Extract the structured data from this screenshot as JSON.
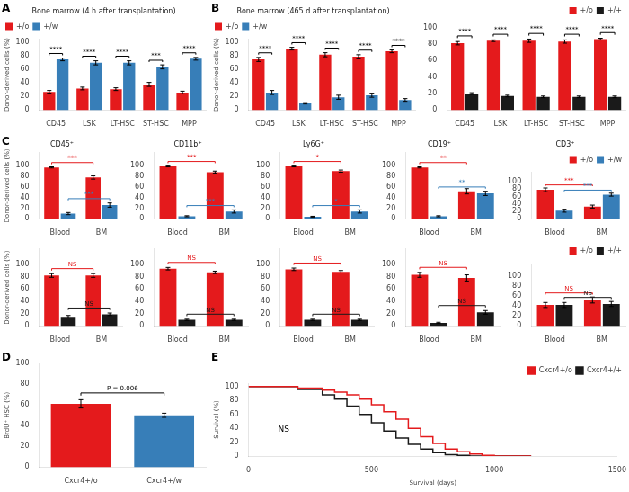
{
  "chart_data": [
    {
      "panel": "A",
      "type": "bar",
      "title": "Bone marrow (4 h after transplantation)",
      "ylabel": "Donor-derived cells (%)",
      "categories": [
        "CD45",
        "LSK",
        "LT-HSC",
        "ST-HSC",
        "MPP"
      ],
      "series": [
        {
          "name": "+/o",
          "color": "#e41a1c",
          "values": [
            27,
            32,
            31,
            38,
            26
          ],
          "errors": [
            2,
            2,
            2,
            3,
            2
          ]
        },
        {
          "name": "+/w",
          "color": "#377eb8",
          "values": [
            75,
            70,
            70,
            64,
            76
          ],
          "errors": [
            2,
            3,
            3,
            3,
            2
          ]
        }
      ],
      "ylim": [
        0,
        105
      ],
      "yticks": [
        0,
        20,
        40,
        60,
        80,
        100
      ],
      "grid": false,
      "legend": "upper left",
      "annotations": [
        {
          "text": "****",
          "category": "CD45"
        },
        {
          "text": "****",
          "category": "LSK"
        },
        {
          "text": "****",
          "category": "LT-HSC"
        },
        {
          "text": "***",
          "category": "ST-HSC"
        },
        {
          "text": "****",
          "category": "MPP"
        }
      ]
    },
    {
      "panel": "B",
      "type": "bar",
      "title": "Bone marrow (465 d after transplantation)",
      "ylabel": "Donor-derived cells (%)",
      "categories": [
        "CD45",
        "LSK",
        "LT-HSC",
        "ST-HSC",
        "MPP"
      ],
      "series": [
        {
          "name": "+/o",
          "color": "#e41a1c",
          "values": [
            75,
            91,
            82,
            79,
            87
          ],
          "errors": [
            3,
            2,
            3,
            3,
            2
          ]
        },
        {
          "name": "+/w",
          "color": "#377eb8",
          "values": [
            26,
            10,
            19,
            22,
            15
          ],
          "errors": [
            3,
            1,
            3,
            3,
            2
          ]
        }
      ],
      "ylim": [
        0,
        105
      ],
      "yticks": [
        0,
        20,
        40,
        60,
        80,
        100
      ],
      "grid": false,
      "legend": "upper left",
      "annotations": [
        {
          "text": "****",
          "category": "CD45"
        },
        {
          "text": "****",
          "category": "LSK"
        },
        {
          "text": "****",
          "category": "LT-HSC"
        },
        {
          "text": "****",
          "category": "ST-HSC"
        },
        {
          "text": "****",
          "category": "MPP"
        }
      ]
    },
    {
      "type": "bar",
      "categories": [
        "CD45",
        "LSK",
        "LT-HSC",
        "ST-HSC",
        "MPP"
      ],
      "series": [
        {
          "name": "+/o",
          "color": "#e41a1c",
          "values": [
            81,
            84,
            84,
            83,
            86
          ],
          "errors": [
            2,
            1,
            2,
            2,
            1
          ]
        },
        {
          "name": "+/+",
          "color": "#1a1a1a",
          "values": [
            20,
            17,
            16,
            16,
            16
          ],
          "errors": [
            1,
            1,
            1,
            1,
            1
          ]
        }
      ],
      "ylim": [
        0,
        105
      ],
      "yticks": [
        0,
        20,
        40,
        60,
        80,
        100
      ],
      "grid": false,
      "legend": "upper right",
      "annotations": [
        {
          "text": "****",
          "category": "CD45"
        },
        {
          "text": "****",
          "category": "LSK"
        },
        {
          "text": "****",
          "category": "LT-HSC"
        },
        {
          "text": "****",
          "category": "ST-HSC"
        },
        {
          "text": "****",
          "category": "MPP"
        }
      ]
    },
    {
      "panel": "C",
      "type": "bar",
      "title": "CD45⁺",
      "ylabel": "Donor-derived cells (%)",
      "categories": [
        "Blood",
        "BM"
      ],
      "series": [
        {
          "color": "#e41a1c",
          "values": [
            97,
            78
          ],
          "errors": [
            1,
            3
          ]
        },
        {
          "color": "#377eb8",
          "values": [
            10,
            26
          ],
          "errors": [
            2,
            4
          ]
        }
      ],
      "ylim": [
        0,
        125
      ],
      "yticks": [
        0,
        20,
        40,
        60,
        80,
        100
      ],
      "grid": false,
      "annotations": [
        {
          "text": "***",
          "series": 0
        },
        {
          "text": "***",
          "series": 1
        }
      ]
    },
    {
      "type": "bar",
      "title": "CD11b⁺",
      "categories": [
        "Blood",
        "BM"
      ],
      "series": [
        {
          "color": "#e41a1c",
          "values": [
            99,
            88
          ],
          "errors": [
            1,
            2
          ]
        },
        {
          "color": "#377eb8",
          "values": [
            5,
            14
          ],
          "errors": [
            1,
            3
          ]
        }
      ],
      "ylim": [
        0,
        125
      ],
      "yticks": [
        0,
        20,
        40,
        60,
        80,
        100
      ],
      "grid": false,
      "annotations": [
        {
          "text": "***",
          "series": 0
        },
        {
          "text": "***",
          "series": 1
        }
      ]
    },
    {
      "type": "bar",
      "title": "Ly6G⁺",
      "categories": [
        "Blood",
        "BM"
      ],
      "series": [
        {
          "color": "#e41a1c",
          "values": [
            99,
            90
          ],
          "errors": [
            1,
            2
          ]
        },
        {
          "color": "#377eb8",
          "values": [
            4,
            14
          ],
          "errors": [
            1,
            3
          ]
        }
      ],
      "ylim": [
        0,
        125
      ],
      "yticks": [
        0,
        20,
        40,
        60,
        80,
        100
      ],
      "grid": false,
      "annotations": [
        {
          "text": "*",
          "series": 0
        },
        {
          "text": "*",
          "series": 1
        }
      ]
    },
    {
      "type": "bar",
      "title": "CD19⁺",
      "categories": [
        "Blood",
        "BM"
      ],
      "series": [
        {
          "color": "#e41a1c",
          "values": [
            97,
            52
          ],
          "errors": [
            1,
            5
          ]
        },
        {
          "color": "#377eb8",
          "values": [
            5,
            48
          ],
          "errors": [
            1,
            4
          ]
        }
      ],
      "ylim": [
        0,
        125
      ],
      "yticks": [
        0,
        20,
        40,
        60,
        80,
        100
      ],
      "grid": false,
      "annotations": [
        {
          "text": "**",
          "series": 0
        },
        {
          "text": "**",
          "series": 1
        }
      ]
    },
    {
      "type": "bar",
      "title": "CD3⁺",
      "categories": [
        "Blood",
        "BM"
      ],
      "series": [
        {
          "name": "+/o",
          "color": "#e41a1c",
          "values": [
            78,
            33
          ],
          "errors": [
            5,
            4
          ]
        },
        {
          "name": "+/w",
          "color": "#377eb8",
          "values": [
            22,
            65
          ],
          "errors": [
            4,
            4
          ]
        }
      ],
      "ylim": [
        0,
        125
      ],
      "yticks": [
        0,
        20,
        40,
        60,
        80,
        100
      ],
      "grid": false,
      "legend": "upper right",
      "annotations": [
        {
          "text": "***",
          "series": 0
        },
        {
          "text": "***",
          "series": 1
        }
      ]
    },
    {
      "type": "bar",
      "ylabel": "Donor-derived cells (%)",
      "categories": [
        "Blood",
        "BM"
      ],
      "series": [
        {
          "color": "#e41a1c",
          "values": [
            82,
            82
          ],
          "errors": [
            3,
            3
          ]
        },
        {
          "color": "#1a1a1a",
          "values": [
            15,
            19
          ],
          "errors": [
            2,
            2
          ]
        }
      ],
      "ylim": [
        0,
        125
      ],
      "yticks": [
        0,
        20,
        40,
        60,
        80,
        100
      ],
      "grid": false,
      "annotations": [
        {
          "text": "NS",
          "series": 0
        },
        {
          "text": "NS",
          "series": 1
        }
      ]
    },
    {
      "type": "bar",
      "categories": [
        "Blood",
        "BM"
      ],
      "series": [
        {
          "color": "#e41a1c",
          "values": [
            93,
            87
          ],
          "errors": [
            2,
            2
          ]
        },
        {
          "color": "#1a1a1a",
          "values": [
            10,
            10
          ],
          "errors": [
            1,
            1
          ]
        }
      ],
      "ylim": [
        0,
        125
      ],
      "yticks": [
        0,
        20,
        40,
        60,
        80,
        100
      ],
      "grid": false,
      "annotations": [
        {
          "text": "NS",
          "series": 0
        },
        {
          "text": "NS",
          "series": 1
        }
      ]
    },
    {
      "type": "bar",
      "categories": [
        "Blood",
        "BM"
      ],
      "series": [
        {
          "color": "#e41a1c",
          "values": [
            92,
            88
          ],
          "errors": [
            2,
            2
          ]
        },
        {
          "color": "#1a1a1a",
          "values": [
            10,
            10
          ],
          "errors": [
            1,
            1
          ]
        }
      ],
      "ylim": [
        0,
        125
      ],
      "yticks": [
        0,
        20,
        40,
        60,
        80,
        100
      ],
      "grid": false,
      "annotations": [
        {
          "text": "NS",
          "series": 0
        },
        {
          "text": "NS",
          "series": 1
        }
      ]
    },
    {
      "type": "bar",
      "categories": [
        "Blood",
        "BM"
      ],
      "series": [
        {
          "color": "#e41a1c",
          "values": [
            83,
            78
          ],
          "errors": [
            4,
            5
          ]
        },
        {
          "color": "#1a1a1a",
          "values": [
            5,
            22
          ],
          "errors": [
            1,
            3
          ]
        }
      ],
      "ylim": [
        0,
        125
      ],
      "yticks": [
        0,
        20,
        40,
        60,
        80,
        100
      ],
      "grid": false,
      "annotations": [
        {
          "text": "NS",
          "series": 0
        },
        {
          "text": "NS",
          "series": 1
        }
      ]
    },
    {
      "type": "bar",
      "categories": [
        "Blood",
        "BM"
      ],
      "series": [
        {
          "name": "+/o",
          "color": "#e41a1c",
          "values": [
            42,
            52
          ],
          "errors": [
            5,
            6
          ]
        },
        {
          "name": "+/+",
          "color": "#1a1a1a",
          "values": [
            42,
            44
          ],
          "errors": [
            5,
            5
          ]
        }
      ],
      "ylim": [
        0,
        125
      ],
      "yticks": [
        0,
        20,
        40,
        60,
        80,
        100
      ],
      "grid": false,
      "legend": "upper right",
      "annotations": [
        {
          "text": "NS",
          "series": 0
        },
        {
          "text": "NS",
          "series": 1
        }
      ]
    },
    {
      "panel": "D",
      "type": "bar",
      "ylabel": "BrdU⁺ HSC (%)",
      "categories": [
        "Cxcr4+/o",
        "Cxcr4+/w"
      ],
      "series": [
        {
          "colors": [
            "#e41a1c",
            "#377eb8"
          ],
          "values": [
            61,
            50
          ],
          "errors": [
            4,
            2
          ]
        }
      ],
      "ylim": [
        0,
        100
      ],
      "yticks": [
        0,
        20,
        40,
        60,
        80,
        100
      ],
      "grid": false,
      "annotations": [
        {
          "text": "P = 0.006"
        }
      ]
    },
    {
      "panel": "E",
      "type": "line",
      "xlabel": "Survival (days)",
      "ylabel": "Survival (%)",
      "line_style": "steps",
      "series": [
        {
          "name": "Cxcr4+/o",
          "color": "#e41a1c",
          "x": [
            0,
            50,
            100,
            200,
            300,
            350,
            400,
            450,
            500,
            550,
            600,
            650,
            700,
            750,
            800,
            850,
            900,
            950,
            1000,
            1050,
            1100,
            1150
          ],
          "values": [
            100,
            100,
            100,
            98,
            95,
            92,
            88,
            82,
            74,
            64,
            53,
            40,
            28,
            18,
            10,
            6,
            3,
            1,
            0,
            0,
            0,
            0
          ]
        },
        {
          "name": "Cxcr4+/+",
          "color": "#1a1a1a",
          "x": [
            0,
            50,
            100,
            200,
            300,
            350,
            400,
            450,
            500,
            550,
            600,
            650,
            700,
            750,
            800,
            850,
            900,
            950,
            1000,
            1050,
            1100,
            1150
          ],
          "values": [
            100,
            100,
            100,
            96,
            88,
            82,
            72,
            60,
            48,
            36,
            26,
            17,
            10,
            5,
            2,
            1,
            0,
            0,
            0,
            0,
            0,
            0
          ]
        }
      ],
      "xlim": [
        0,
        1500
      ],
      "xticks": [
        0,
        500,
        1000,
        1500
      ],
      "ylim": [
        0,
        105
      ],
      "yticks": [
        0,
        20,
        40,
        60,
        80,
        100
      ],
      "grid": false,
      "legend": "upper right",
      "annotations": [
        {
          "text": "NS",
          "x": 120,
          "y": 35
        }
      ]
    }
  ]
}
